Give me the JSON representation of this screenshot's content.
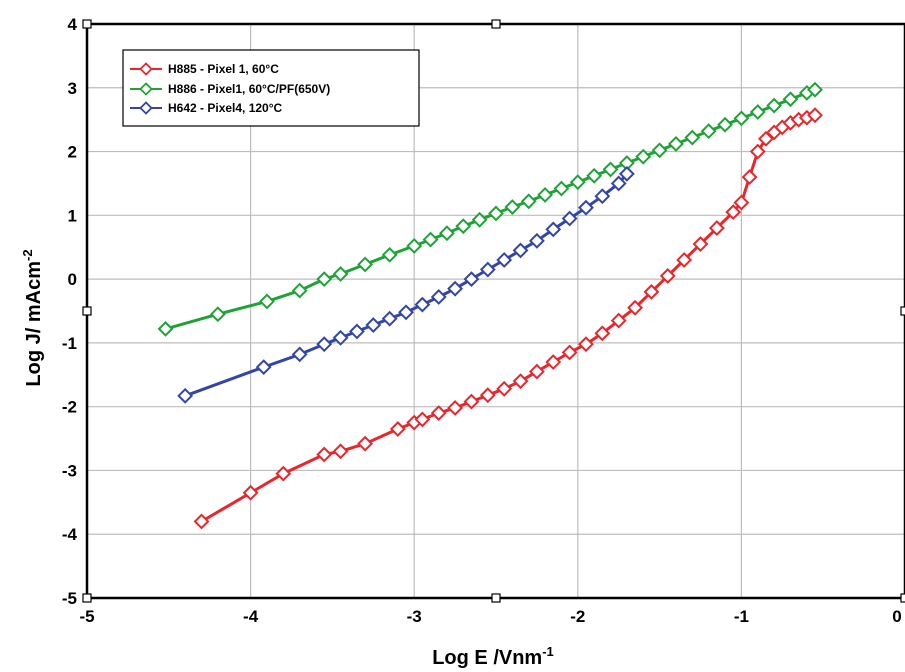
{
  "chart_data": {
    "type": "line",
    "title": "",
    "xlabel": "Log E /Vnm",
    "xlabel_sup": "-1",
    "ylabel": "Log J/ mAcm",
    "ylabel_sup": "-2",
    "xlim": [
      -5,
      0
    ],
    "ylim": [
      -5,
      4
    ],
    "xticks": [
      "-5",
      "-4",
      "-3",
      "-2",
      "-1",
      "0"
    ],
    "yticks": [
      "4",
      "3",
      "2",
      "1",
      "0",
      "-1",
      "-2",
      "-3",
      "-4",
      "-5"
    ],
    "grid": true,
    "legend_position": "top-left",
    "series": [
      {
        "name": "H885 - Pixel 1, 60°C",
        "color": "#e8262b",
        "marker": "diamond",
        "x": [
          -4.3,
          -4.0,
          -3.8,
          -3.55,
          -3.45,
          -3.3,
          -3.1,
          -3.0,
          -2.95,
          -2.85,
          -2.75,
          -2.65,
          -2.55,
          -2.45,
          -2.35,
          -2.25,
          -2.15,
          -2.05,
          -1.95,
          -1.85,
          -1.75,
          -1.65,
          -1.55,
          -1.45,
          -1.35,
          -1.25,
          -1.15,
          -1.05,
          -1.0,
          -0.95,
          -0.9,
          -0.85,
          -0.8,
          -0.75,
          -0.7,
          -0.65,
          -0.6,
          -0.55
        ],
        "y": [
          -3.8,
          -3.35,
          -3.05,
          -2.75,
          -2.7,
          -2.58,
          -2.35,
          -2.25,
          -2.2,
          -2.1,
          -2.02,
          -1.92,
          -1.82,
          -1.72,
          -1.6,
          -1.45,
          -1.3,
          -1.15,
          -1.02,
          -0.85,
          -0.65,
          -0.45,
          -0.2,
          0.05,
          0.3,
          0.55,
          0.8,
          1.05,
          1.2,
          1.6,
          2.0,
          2.2,
          2.3,
          2.38,
          2.45,
          2.5,
          2.53,
          2.57
        ]
      },
      {
        "name": "H886 - Pixel1, 60°C/PF(650V)",
        "color": "#1fa337",
        "marker": "diamond",
        "x": [
          -4.52,
          -4.2,
          -3.9,
          -3.7,
          -3.55,
          -3.45,
          -3.3,
          -3.15,
          -3.0,
          -2.9,
          -2.8,
          -2.7,
          -2.6,
          -2.5,
          -2.4,
          -2.3,
          -2.2,
          -2.1,
          -2.0,
          -1.9,
          -1.8,
          -1.7,
          -1.6,
          -1.5,
          -1.4,
          -1.3,
          -1.2,
          -1.1,
          -1.0,
          -0.9,
          -0.8,
          -0.7,
          -0.6,
          -0.55
        ],
        "y": [
          -0.78,
          -0.55,
          -0.35,
          -0.18,
          0.0,
          0.08,
          0.23,
          0.38,
          0.52,
          0.62,
          0.72,
          0.83,
          0.93,
          1.03,
          1.13,
          1.22,
          1.32,
          1.42,
          1.52,
          1.62,
          1.72,
          1.82,
          1.92,
          2.02,
          2.12,
          2.22,
          2.32,
          2.42,
          2.52,
          2.62,
          2.72,
          2.82,
          2.92,
          2.97
        ]
      },
      {
        "name": "H642 - Pixel4, 120°C",
        "color": "#3346a6",
        "marker": "diamond",
        "x": [
          -4.4,
          -3.92,
          -3.7,
          -3.55,
          -3.45,
          -3.35,
          -3.25,
          -3.15,
          -3.05,
          -2.95,
          -2.85,
          -2.75,
          -2.65,
          -2.55,
          -2.45,
          -2.35,
          -2.25,
          -2.15,
          -2.05,
          -1.95,
          -1.85,
          -1.75,
          -1.7
        ],
        "y": [
          -1.83,
          -1.38,
          -1.18,
          -1.02,
          -0.92,
          -0.82,
          -0.72,
          -0.62,
          -0.52,
          -0.4,
          -0.28,
          -0.15,
          0.0,
          0.15,
          0.3,
          0.45,
          0.6,
          0.78,
          0.95,
          1.12,
          1.3,
          1.5,
          1.65
        ]
      }
    ]
  }
}
